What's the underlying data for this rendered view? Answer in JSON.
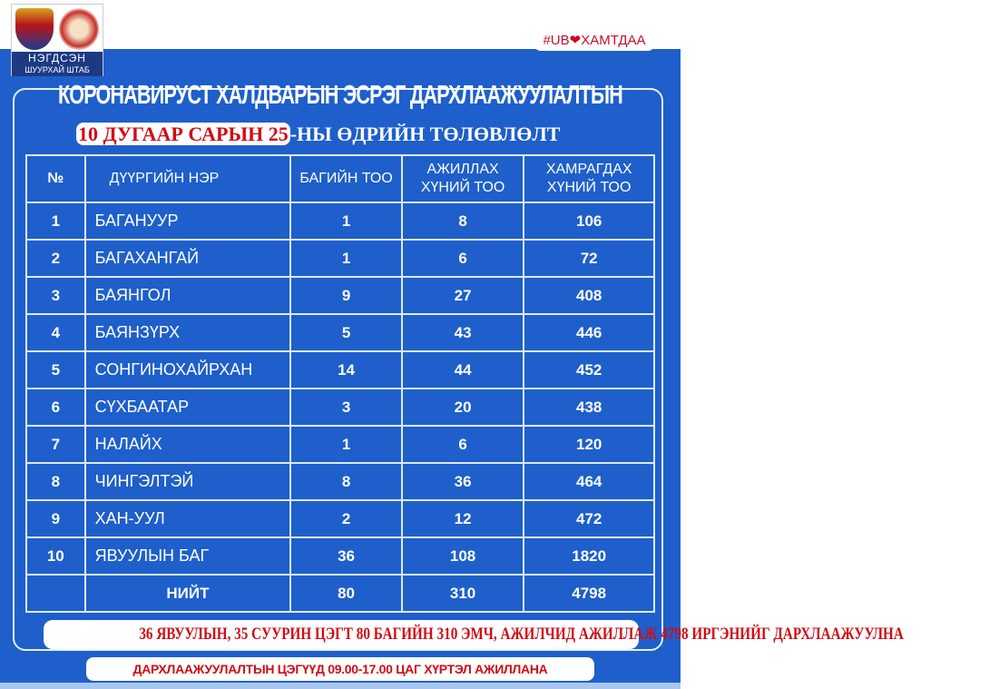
{
  "logo": {
    "line1": "НЭГДСЭН",
    "line2": "ШУУРХАЙ ШТАБ"
  },
  "hashtag": {
    "prefix": "#UB",
    "suffix": "ХАМТДАА"
  },
  "title": "КОРОНАВИРУСТ ХАЛДВАРЫН ЭСРЭГ ДАРХЛААЖУУЛАЛТЫН",
  "subtitle": {
    "highlight": "10 ДУГААР САРЫН 25",
    "rest": "-НЫ ӨДРИЙН ТӨЛӨВЛӨЛТ"
  },
  "table": {
    "headers": [
      "№",
      "ДҮҮРГИЙН НЭР",
      "БАГИЙН ТОО",
      "АЖИЛЛАХ ХҮНИЙ ТОО",
      "ХАМРАГДАХ ХҮНИЙ ТОО"
    ],
    "rows": [
      [
        "1",
        "БАГАНУУР",
        "1",
        "8",
        "106"
      ],
      [
        "2",
        "БАГАХАНГАЙ",
        "1",
        "6",
        "72"
      ],
      [
        "3",
        "БАЯНГОЛ",
        "9",
        "27",
        "408"
      ],
      [
        "4",
        "БАЯНЗҮРХ",
        "5",
        "43",
        "446"
      ],
      [
        "5",
        "СОНГИНОХАЙРХАН",
        "14",
        "44",
        "452"
      ],
      [
        "6",
        "СҮХБААТАР",
        "3",
        "20",
        "438"
      ],
      [
        "7",
        "НАЛАЙХ",
        "1",
        "6",
        "120"
      ],
      [
        "8",
        "ЧИНГЭЛТЭЙ",
        "8",
        "36",
        "464"
      ],
      [
        "9",
        "ХАН-УУЛ",
        "2",
        "12",
        "472"
      ],
      [
        "10",
        "ЯВУУЛЫН БАГ",
        "36",
        "108",
        "1820"
      ]
    ],
    "total": [
      "",
      "НИЙТ",
      "80",
      "310",
      "4798"
    ]
  },
  "banner_summary": "36 ЯВУУЛЫН, 35 СУУРИН ЦЭГТ 80 БАГИЙН 310 ЭМЧ, АЖИЛЧИД АЖИЛЛАЖ 4798 ИРГЭНИЙГ ДАРХЛААЖУУЛНА",
  "banner_hours": "ДАРХЛААЖУУЛАЛТЫН ЦЭГҮҮД 09.00-17.00 ЦАГ ХҮРТЭЛ АЖИЛЛАНА",
  "colors": {
    "background": "#1e5fcb",
    "accent": "#d20b13"
  }
}
